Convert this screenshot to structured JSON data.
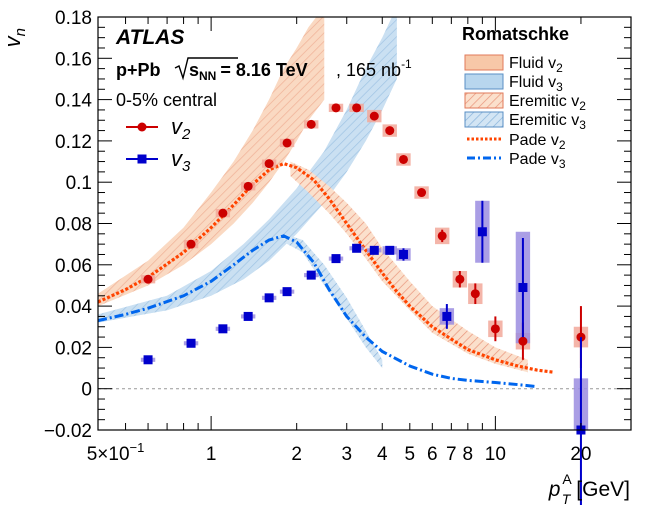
{
  "chart_data": {
    "type": "scatter",
    "title": "",
    "ylabel": "v",
    "ylabel_sub": "n",
    "xlabel_main": "p",
    "xlabel_sub": "T",
    "xlabel_sup": "A",
    "xlabel_unit": "[GeV]",
    "xscale": "log",
    "xlim": [
      0.4,
      30
    ],
    "ylim": [
      -0.02,
      0.18
    ],
    "grid": false,
    "zero_line": true,
    "x_tick_labels": [
      {
        "x": 0.5,
        "text": "5×10",
        "sup": "−1"
      },
      {
        "x": 1,
        "text": "1"
      },
      {
        "x": 2,
        "text": "2"
      },
      {
        "x": 3,
        "text": "3"
      },
      {
        "x": 4,
        "text": "4"
      },
      {
        "x": 5,
        "text": "5"
      },
      {
        "x": 6,
        "text": "6"
      },
      {
        "x": 7,
        "text": "7"
      },
      {
        "x": 8,
        "text": "8"
      },
      {
        "x": 10,
        "text": "10"
      },
      {
        "x": 20,
        "text": "20"
      }
    ],
    "y_ticks": [
      -0.02,
      0,
      0.02,
      0.04,
      0.06,
      0.08,
      0.1,
      0.12,
      0.14,
      0.16,
      0.18
    ],
    "y_tick_labels": [
      "−0.02",
      "0",
      "0.02",
      "0.04",
      "0.06",
      "0.08",
      "0.1",
      "0.12",
      "0.14",
      "0.16",
      "0.18"
    ],
    "annotations": {
      "experiment": "ATLAS",
      "system_main": "p+Pb",
      "system_energy_label": "s",
      "system_energy_sub": "NN",
      "system_energy_value": "= 8.16 TeV",
      "lumi_text": ", 165 nb",
      "lumi_sup": "-1",
      "centrality": "0-5% central"
    },
    "legend_title": "Romatschke",
    "legend_entries": {
      "v2": {
        "base": "v",
        "sub": "2"
      },
      "v3": {
        "base": "v",
        "sub": "3"
      },
      "fluid_v2": {
        "base": "Fluid v",
        "sub": "2"
      },
      "fluid_v3": {
        "base": "Fluid v",
        "sub": "3"
      },
      "eremitic_v2": {
        "base": "Eremitic v",
        "sub": "2"
      },
      "eremitic_v3": {
        "base": "Eremitic v",
        "sub": "3"
      },
      "pade_v2": {
        "base": "Pade v",
        "sub": "2"
      },
      "pade_v3": {
        "base": "Pade v",
        "sub": "3"
      }
    },
    "colors": {
      "v2": "#cc0000",
      "v3": "#0000cc",
      "v2_syst": "#f2a89a",
      "v3_syst": "#9b8de0",
      "fluid_v2": "#f7c8a8",
      "fluid_v3": "#b8d6ee",
      "hatch_v2": "#e8947a",
      "hatch_v3": "#86b2da",
      "pade_v2": "#ff4400",
      "pade_v3": "#0066ee"
    },
    "series": [
      {
        "name": "v2",
        "marker": "circle",
        "points": [
          {
            "x": 0.6,
            "y": 0.053,
            "err": 0.001,
            "syst": 0.002
          },
          {
            "x": 0.85,
            "y": 0.07,
            "err": 0.001,
            "syst": 0.002
          },
          {
            "x": 1.1,
            "y": 0.085,
            "err": 0.001,
            "syst": 0.002
          },
          {
            "x": 1.35,
            "y": 0.098,
            "err": 0.001,
            "syst": 0.002
          },
          {
            "x": 1.6,
            "y": 0.109,
            "err": 0.001,
            "syst": 0.002
          },
          {
            "x": 1.85,
            "y": 0.119,
            "err": 0.001,
            "syst": 0.002
          },
          {
            "x": 2.25,
            "y": 0.128,
            "err": 0.001,
            "syst": 0.002
          },
          {
            "x": 2.75,
            "y": 0.136,
            "err": 0.001,
            "syst": 0.002
          },
          {
            "x": 3.25,
            "y": 0.136,
            "err": 0.001,
            "syst": 0.002
          },
          {
            "x": 3.75,
            "y": 0.132,
            "err": 0.001,
            "syst": 0.003
          },
          {
            "x": 4.25,
            "y": 0.125,
            "err": 0.001,
            "syst": 0.003
          },
          {
            "x": 4.75,
            "y": 0.111,
            "err": 0.002,
            "syst": 0.003
          },
          {
            "x": 5.5,
            "y": 0.095,
            "err": 0.002,
            "syst": 0.003
          },
          {
            "x": 6.5,
            "y": 0.074,
            "err": 0.003,
            "syst": 0.004
          },
          {
            "x": 7.5,
            "y": 0.053,
            "err": 0.004,
            "syst": 0.004
          },
          {
            "x": 8.5,
            "y": 0.046,
            "err": 0.005,
            "syst": 0.005
          },
          {
            "x": 10,
            "y": 0.029,
            "err": 0.006,
            "syst": 0.004
          },
          {
            "x": 12.5,
            "y": 0.023,
            "err": 0.009,
            "syst": 0.004
          },
          {
            "x": 20,
            "y": 0.025,
            "err": 0.015,
            "syst": 0.005
          }
        ]
      },
      {
        "name": "v3",
        "marker": "square",
        "points": [
          {
            "x": 0.6,
            "y": 0.014,
            "err": 0.001,
            "syst": 0.001
          },
          {
            "x": 0.85,
            "y": 0.022,
            "err": 0.001,
            "syst": 0.001
          },
          {
            "x": 1.1,
            "y": 0.029,
            "err": 0.001,
            "syst": 0.001
          },
          {
            "x": 1.35,
            "y": 0.035,
            "err": 0.001,
            "syst": 0.001
          },
          {
            "x": 1.6,
            "y": 0.044,
            "err": 0.001,
            "syst": 0.001
          },
          {
            "x": 1.85,
            "y": 0.047,
            "err": 0.001,
            "syst": 0.001
          },
          {
            "x": 2.25,
            "y": 0.055,
            "err": 0.001,
            "syst": 0.001
          },
          {
            "x": 2.75,
            "y": 0.063,
            "err": 0.001,
            "syst": 0.001
          },
          {
            "x": 3.25,
            "y": 0.068,
            "err": 0.001,
            "syst": 0.001
          },
          {
            "x": 3.75,
            "y": 0.067,
            "err": 0.001,
            "syst": 0.001
          },
          {
            "x": 4.25,
            "y": 0.067,
            "err": 0.002,
            "syst": 0.002
          },
          {
            "x": 4.75,
            "y": 0.065,
            "err": 0.003,
            "syst": 0.003
          },
          {
            "x": 6.75,
            "y": 0.035,
            "err": 0.006,
            "syst": 0.004
          },
          {
            "x": 9,
            "y": 0.076,
            "err": 0.015,
            "syst": 0.015
          },
          {
            "x": 12.5,
            "y": 0.049,
            "err": 0.024,
            "syst": 0.027
          },
          {
            "x": 20,
            "y": -0.02,
            "err": 0.045,
            "syst": 0.025
          }
        ]
      }
    ],
    "fluid_v2_band": {
      "x": [
        0.4,
        0.6,
        0.8,
        1.0,
        1.2,
        1.4,
        1.6,
        1.8,
        2.0,
        2.2,
        2.5
      ],
      "lo": [
        0.04,
        0.05,
        0.06,
        0.07,
        0.08,
        0.09,
        0.1,
        0.11,
        0.12,
        0.13,
        0.14
      ],
      "hi": [
        0.046,
        0.062,
        0.078,
        0.095,
        0.11,
        0.125,
        0.14,
        0.155,
        0.165,
        0.175,
        0.185
      ]
    },
    "fluid_v3_band": {
      "x": [
        0.4,
        0.7,
        1.0,
        1.3,
        1.6,
        2.0,
        2.5,
        3.0,
        3.5,
        4.0,
        4.5
      ],
      "lo": [
        0.032,
        0.038,
        0.045,
        0.053,
        0.062,
        0.075,
        0.09,
        0.105,
        0.12,
        0.135,
        0.15
      ],
      "hi": [
        0.036,
        0.045,
        0.057,
        0.07,
        0.082,
        0.097,
        0.115,
        0.135,
        0.155,
        0.17,
        0.185
      ]
    },
    "eremitic_v2_band": {
      "x": [
        1.9,
        2.2,
        2.6,
        3.0,
        3.5,
        4.0,
        5.0,
        6.0,
        8.0,
        10.0,
        13.0
      ],
      "lo": [
        0.103,
        0.095,
        0.085,
        0.075,
        0.063,
        0.052,
        0.038,
        0.027,
        0.017,
        0.012,
        0.008
      ],
      "hi": [
        0.11,
        0.106,
        0.098,
        0.09,
        0.08,
        0.068,
        0.052,
        0.04,
        0.028,
        0.02,
        0.014
      ]
    },
    "eremitic_v3_band": {
      "x": [
        1.8,
        2.1,
        2.5,
        3.0,
        3.5,
        4.0
      ],
      "lo": [
        0.071,
        0.066,
        0.05,
        0.034,
        0.02,
        0.01
      ],
      "hi": [
        0.075,
        0.072,
        0.06,
        0.044,
        0.028,
        0.014
      ]
    },
    "pade_v2_curve": {
      "x": [
        0.4,
        0.5,
        0.6,
        0.8,
        1.0,
        1.2,
        1.4,
        1.6,
        1.8,
        2.0,
        2.3,
        2.6,
        3.0,
        3.5,
        4.0,
        4.5,
        5.0,
        6.0,
        7.0,
        8.0,
        10.0,
        12.0,
        14.0,
        16.0
      ],
      "y": [
        0.042,
        0.048,
        0.054,
        0.066,
        0.078,
        0.089,
        0.099,
        0.106,
        0.109,
        0.107,
        0.101,
        0.092,
        0.08,
        0.067,
        0.056,
        0.047,
        0.04,
        0.03,
        0.024,
        0.019,
        0.014,
        0.011,
        0.009,
        0.008
      ]
    },
    "pade_v3_curve": {
      "x": [
        0.4,
        0.5,
        0.6,
        0.8,
        1.0,
        1.2,
        1.4,
        1.6,
        1.8,
        2.0,
        2.3,
        2.6,
        3.0,
        3.5,
        4.0,
        5.0,
        6.0,
        7.0,
        8.0,
        10.0,
        12.0,
        14.0
      ],
      "y": [
        0.033,
        0.036,
        0.039,
        0.045,
        0.052,
        0.06,
        0.067,
        0.072,
        0.074,
        0.071,
        0.061,
        0.048,
        0.035,
        0.025,
        0.018,
        0.011,
        0.007,
        0.005,
        0.004,
        0.003,
        0.002,
        0.001
      ]
    }
  }
}
